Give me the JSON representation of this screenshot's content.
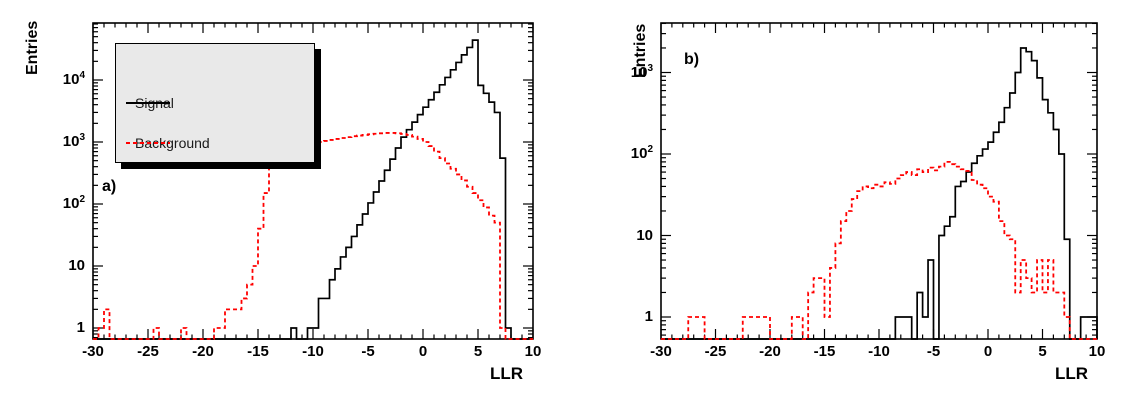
{
  "figure": {
    "background": "#ffffff",
    "signal_color": "#000000",
    "background_color": "#ff0000"
  },
  "chart_data": [
    {
      "type": "histogram",
      "panel_label": "a)",
      "xlabel": "LLR",
      "ylabel": "Entries",
      "yscale": "log",
      "xlim": [
        -30,
        10
      ],
      "ylim": [
        0.66,
        83000
      ],
      "x_bin_start": -30,
      "x_bin_width": 0.5,
      "x_major_ticks": [
        -30,
        -25,
        -20,
        -15,
        -10,
        -5,
        0,
        5,
        10
      ],
      "x_tick_labels": [
        "-30",
        "-25",
        "-20",
        "-15",
        "-10",
        "-5",
        "0",
        "5",
        "10"
      ],
      "y_major_ticks": [
        1,
        10,
        100,
        1000,
        10000
      ],
      "y_tick_labels": [
        "1",
        "10",
        "10^2",
        "10^3",
        "10^4"
      ],
      "legend": {
        "visible": true,
        "position": "top-left",
        "items": [
          {
            "label": "Signal",
            "color": "#000000",
            "style": "solid"
          },
          {
            "label": "Background",
            "color": "#ff0000",
            "style": "dashed"
          }
        ]
      },
      "series": [
        {
          "name": "Signal",
          "color": "#000000",
          "line": "solid",
          "values": [
            0,
            0,
            0,
            0,
            0,
            0,
            0,
            0,
            0,
            0,
            0,
            0,
            0,
            0,
            0,
            0,
            0,
            0,
            0,
            0,
            0,
            0,
            0,
            0,
            0,
            0,
            0,
            0,
            0,
            0,
            0,
            0,
            0,
            0,
            0,
            0,
            1,
            0,
            0,
            1,
            1,
            3,
            3,
            6,
            9,
            14,
            20,
            30,
            46,
            69,
            104,
            156,
            235,
            350,
            530,
            800,
            1200,
            1580,
            2090,
            2760,
            3640,
            4800,
            6340,
            8370,
            11000,
            14600,
            19200,
            25400,
            33500,
            44000,
            8200,
            6100,
            4400,
            3000,
            550,
            1,
            0,
            0,
            0,
            0
          ]
        },
        {
          "name": "Background",
          "color": "#ff0000",
          "line": "dashed",
          "values": [
            0,
            1,
            2,
            0,
            0,
            0,
            0,
            0,
            0,
            0,
            0,
            1,
            0,
            0,
            0,
            0,
            1,
            0,
            0,
            0,
            0,
            0,
            1,
            1,
            2,
            2,
            2,
            3,
            5,
            10,
            40,
            150,
            380,
            480,
            560,
            640,
            720,
            790,
            850,
            900,
            950,
            1000,
            1040,
            1080,
            1120,
            1160,
            1200,
            1240,
            1270,
            1300,
            1330,
            1360,
            1380,
            1400,
            1400,
            1380,
            1350,
            1300,
            1220,
            1120,
            1000,
            860,
            700,
            550,
            450,
            370,
            300,
            240,
            190,
            150,
            115,
            88,
            65,
            50,
            1,
            0,
            0,
            0,
            0,
            0
          ]
        }
      ]
    },
    {
      "type": "histogram",
      "panel_label": "b)",
      "xlabel": "LLR",
      "ylabel": "Entries",
      "yscale": "log",
      "xlim": [
        -30,
        10
      ],
      "ylim": [
        0.54,
        4000
      ],
      "x_bin_start": -30,
      "x_bin_width": 0.5,
      "x_major_ticks": [
        -30,
        -25,
        -20,
        -15,
        -10,
        -5,
        0,
        5,
        10
      ],
      "x_tick_labels": [
        "-30",
        "-25",
        "-20",
        "-15",
        "-10",
        "-5",
        "0",
        "5",
        "10"
      ],
      "y_major_ticks": [
        1,
        10,
        100,
        1000
      ],
      "y_tick_labels": [
        "1",
        "10",
        "10^2",
        "10^3"
      ],
      "legend": {
        "visible": false,
        "items": []
      },
      "series": [
        {
          "name": "Signal",
          "color": "#000000",
          "line": "solid",
          "values": [
            0,
            0,
            0,
            0,
            0,
            0,
            0,
            0,
            0,
            0,
            0,
            0,
            0,
            0,
            0,
            0,
            0,
            0,
            0,
            0,
            0,
            0,
            0,
            0,
            0,
            0,
            0,
            0,
            0,
            0,
            0,
            0,
            0,
            0,
            0,
            0,
            0,
            0,
            0,
            0,
            0,
            0,
            0,
            1,
            1,
            1,
            0,
            2,
            1,
            5,
            0,
            10,
            13,
            17,
            40,
            46,
            60,
            77,
            95,
            115,
            140,
            185,
            245,
            370,
            560,
            1000,
            2000,
            1800,
            1400,
            860,
            465,
            320,
            200,
            100,
            9,
            0,
            0,
            1,
            1,
            1
          ]
        },
        {
          "name": "Background",
          "color": "#ff0000",
          "line": "dashed",
          "values": [
            0,
            0,
            0,
            0,
            0,
            1,
            1,
            1,
            0,
            0,
            0,
            0,
            0,
            0,
            0,
            1,
            1,
            1,
            1,
            1,
            0,
            0,
            0,
            0,
            1,
            1,
            0,
            2,
            3,
            3,
            1,
            4,
            8,
            15,
            20,
            28,
            35,
            40,
            38,
            42,
            40,
            45,
            43,
            50,
            55,
            60,
            55,
            65,
            60,
            68,
            63,
            70,
            80,
            75,
            70,
            65,
            62,
            48,
            42,
            38,
            30,
            26,
            15,
            10,
            9,
            2,
            5,
            3,
            2,
            5,
            2,
            5,
            2,
            2,
            1,
            0,
            0,
            0,
            0,
            0
          ]
        }
      ]
    }
  ]
}
